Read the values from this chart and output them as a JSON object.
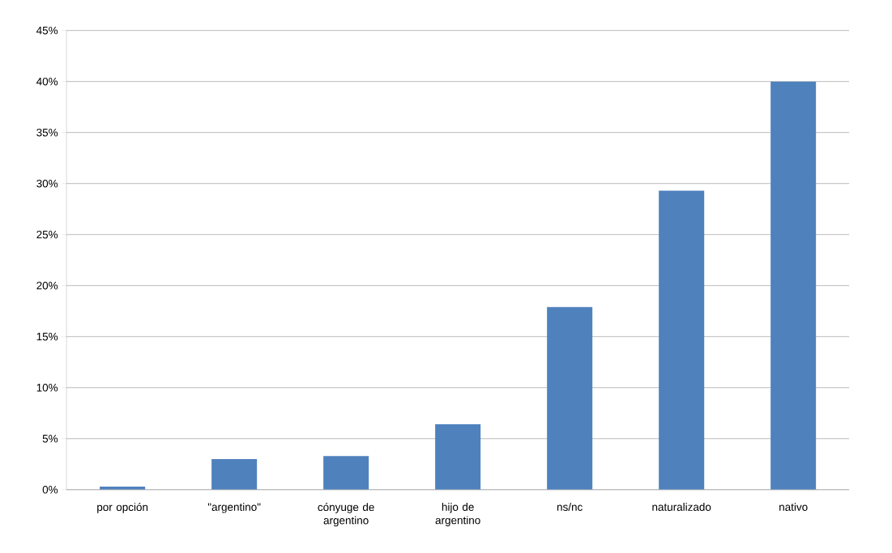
{
  "chart_data": {
    "type": "bar",
    "categories": [
      "por opción",
      "\"argentino\"",
      "cónyuge de argentino",
      "hijo de argentino",
      "ns/nc",
      "naturalizado",
      "nativo"
    ],
    "values": [
      0.3,
      3.0,
      3.3,
      6.4,
      17.9,
      29.3,
      40.0
    ],
    "color": "#4f81bd",
    "ylim": [
      0,
      45
    ],
    "yticks": [
      {
        "value": 0,
        "label": "0%"
      },
      {
        "value": 5,
        "label": "5%"
      },
      {
        "value": 10,
        "label": "10%"
      },
      {
        "value": 15,
        "label": "15%"
      },
      {
        "value": 20,
        "label": "20%"
      },
      {
        "value": 25,
        "label": "25%"
      },
      {
        "value": 30,
        "label": "30%"
      },
      {
        "value": 35,
        "label": "35%"
      },
      {
        "value": 40,
        "label": "40%"
      },
      {
        "value": 45,
        "label": "45%"
      }
    ],
    "grid": "y"
  }
}
